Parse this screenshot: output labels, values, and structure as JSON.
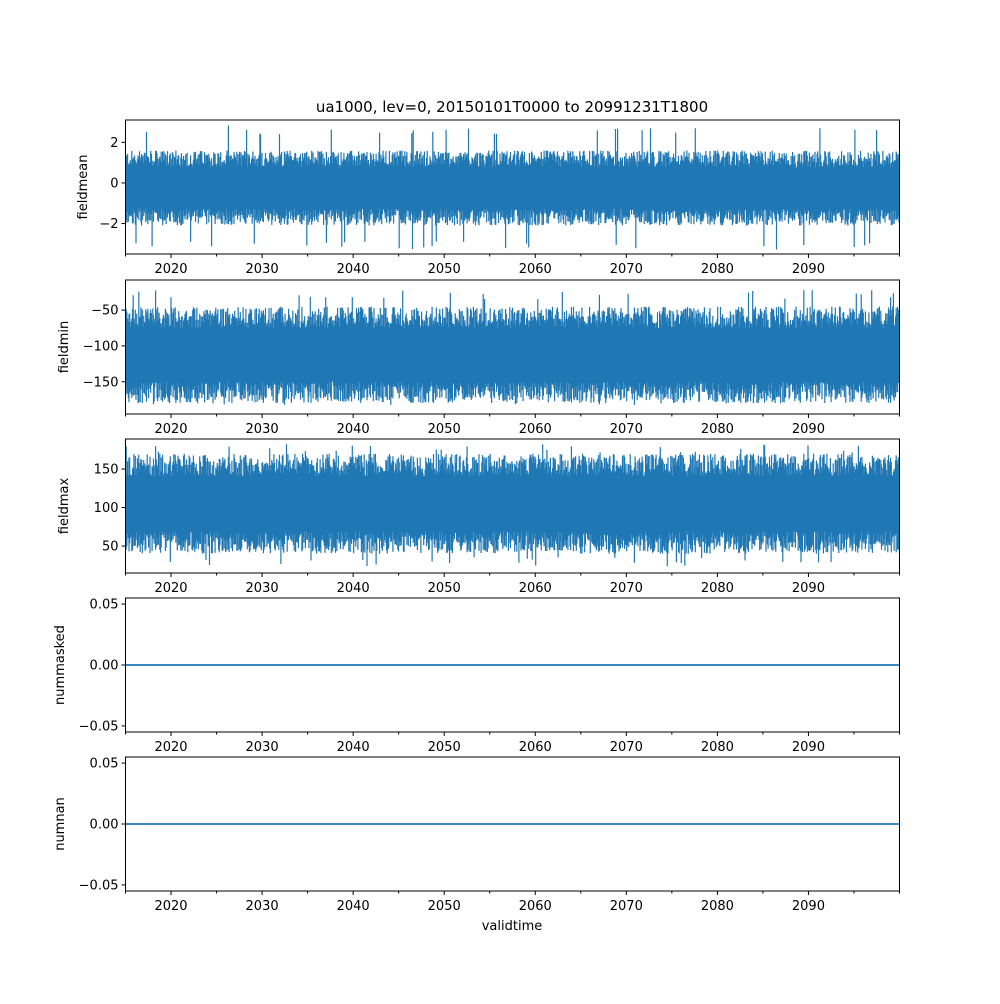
{
  "chart_data": {
    "type": "line",
    "title": "ua1000, lev=0, 20150101T0000 to 20991231T1800",
    "xlabel": "validtime",
    "xlim": [
      2015,
      2100
    ],
    "xticks": [
      2020,
      2030,
      2040,
      2050,
      2060,
      2070,
      2080,
      2090
    ],
    "xtick_labels": [
      "2020",
      "2030",
      "2040",
      "2050",
      "2060",
      "2070",
      "2080",
      "2090"
    ],
    "xminor_ticks": [
      2015,
      2025,
      2035,
      2045,
      2055,
      2065,
      2075,
      2085,
      2095,
      2100
    ],
    "color": "#1f77b4",
    "panels": [
      {
        "ylabel": "fieldmean",
        "ylim": [
          -3.5,
          3.1
        ],
        "yticks": [
          2,
          0,
          -2
        ],
        "ytick_labels": [
          "2",
          "0",
          "−2"
        ],
        "typical_range": [
          -2.1,
          1.6
        ],
        "extreme_range": [
          -3.3,
          2.85
        ],
        "constant": null
      },
      {
        "ylabel": "fieldmin",
        "ylim": [
          -195,
          -8
        ],
        "yticks": [
          -50,
          -100,
          -150
        ],
        "ytick_labels": [
          "−50",
          "−100",
          "−150"
        ],
        "typical_range": [
          -180,
          -45
        ],
        "extreme_range": [
          -183,
          -22
        ],
        "constant": null
      },
      {
        "ylabel": "fieldmax",
        "ylim": [
          15,
          189
        ],
        "yticks": [
          150,
          100,
          50
        ],
        "ytick_labels": [
          "150",
          "100",
          "50"
        ],
        "typical_range": [
          40,
          170
        ],
        "extreme_range": [
          24,
          183
        ],
        "constant": null
      },
      {
        "ylabel": "nummasked",
        "ylim": [
          -0.055,
          0.055
        ],
        "yticks": [
          0.05,
          0,
          -0.05
        ],
        "ytick_labels": [
          "0.05",
          "0.00",
          "−0.05"
        ],
        "constant": 0
      },
      {
        "ylabel": "numnan",
        "ylim": [
          -0.055,
          0.055
        ],
        "yticks": [
          0.05,
          0,
          -0.05
        ],
        "ytick_labels": [
          "0.05",
          "0.00",
          "−0.05"
        ],
        "constant": 0
      }
    ]
  }
}
